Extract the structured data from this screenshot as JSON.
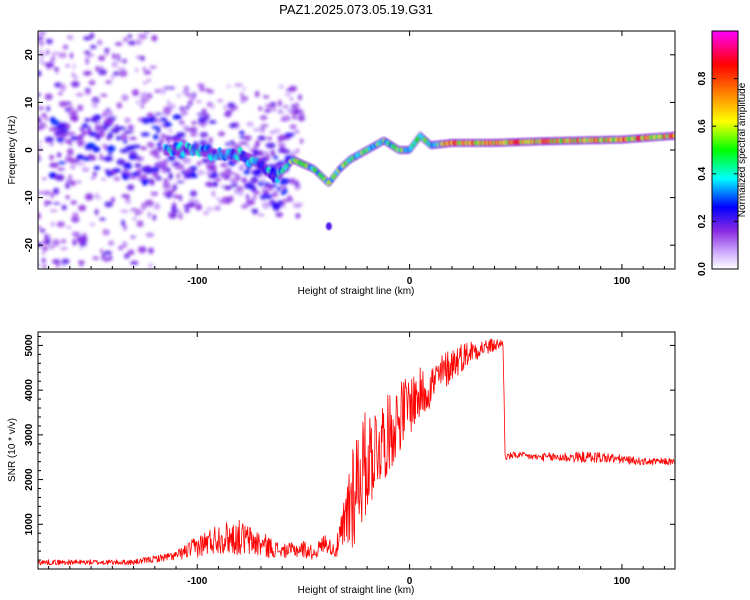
{
  "title": "PAZ1.2025.073.05.19.G31",
  "chart_data": [
    {
      "type": "heatmap",
      "name": "spectrogram",
      "xlabel": "Height of straight line (km)",
      "ylabel": "Frequency (Hz)",
      "xlim": [
        -175,
        125
      ],
      "ylim": [
        -25,
        25
      ],
      "xticks": [
        -100,
        0,
        100
      ],
      "xtick_labels": [
        "-100",
        "0",
        "100"
      ],
      "yticks": [
        -20,
        -10,
        0,
        10,
        20
      ],
      "ytick_labels": [
        "-20",
        "-10",
        "0",
        "10",
        "20"
      ],
      "colorbar": {
        "label": "Normalized spectral amplitude",
        "range": [
          0,
          1
        ],
        "ticks": [
          0,
          0.2,
          0.4,
          0.6,
          0.8
        ],
        "tick_labels": [
          "0.0",
          "0.2",
          "0.4",
          "0.6",
          "0.8"
        ],
        "colors": [
          "#ffffff",
          "#d6b8ff",
          "#8a2be2",
          "#0000ff",
          "#00ffff",
          "#00ff00",
          "#ffff00",
          "#ff7f00",
          "#ff0000",
          "#ff00ff"
        ]
      },
      "ridge": {
        "x": [
          -110,
          -100,
          -90,
          -80,
          -70,
          -63,
          -55,
          -45,
          -38,
          -33,
          -28,
          -20,
          -12,
          -5,
          0,
          5,
          10,
          20,
          40,
          60,
          80,
          100,
          125
        ],
        "y": [
          0,
          0,
          -1,
          -1,
          -3,
          -6,
          -2,
          -4,
          -7,
          -4,
          -2,
          0,
          2,
          0,
          0,
          3,
          1,
          1.5,
          1.5,
          1.8,
          2,
          2.2,
          3
        ]
      }
    },
    {
      "type": "line",
      "name": "snr",
      "xlabel": "Height of straight line (km)",
      "ylabel": "SNR (10 * v/v)",
      "xlim": [
        -175,
        125
      ],
      "ylim": [
        0,
        5300
      ],
      "xticks": [
        -100,
        0,
        100
      ],
      "xtick_labels": [
        "-100",
        "0",
        "100"
      ],
      "yticks": [
        1000,
        2000,
        3000,
        4000,
        5000
      ],
      "ytick_labels": [
        "1000",
        "2000",
        "3000",
        "4000",
        "5000"
      ],
      "color": "#ff0000",
      "envelope": {
        "x": [
          -175,
          -150,
          -130,
          -110,
          -100,
          -90,
          -80,
          -70,
          -60,
          -50,
          -45,
          -40,
          -35,
          -30,
          -28,
          -25,
          -20,
          -15,
          -10,
          -5,
          0,
          5,
          10,
          20,
          30,
          40,
          44,
          45,
          50,
          60,
          70,
          80,
          90,
          100,
          110,
          125
        ],
        "mean": [
          150,
          150,
          150,
          300,
          500,
          700,
          700,
          550,
          400,
          450,
          350,
          600,
          400,
          1000,
          1600,
          2000,
          2400,
          2800,
          3000,
          3400,
          3700,
          3900,
          4100,
          4600,
          4900,
          5000,
          5050,
          2500,
          2550,
          2500,
          2500,
          2500,
          2500,
          2450,
          2400,
          2400
        ],
        "amp": [
          60,
          60,
          60,
          100,
          250,
          350,
          400,
          300,
          150,
          200,
          150,
          200,
          150,
          800,
          1500,
          1300,
          1200,
          1000,
          900,
          800,
          700,
          600,
          500,
          400,
          250,
          150,
          100,
          80,
          80,
          80,
          120,
          120,
          130,
          100,
          80,
          80
        ]
      }
    }
  ]
}
